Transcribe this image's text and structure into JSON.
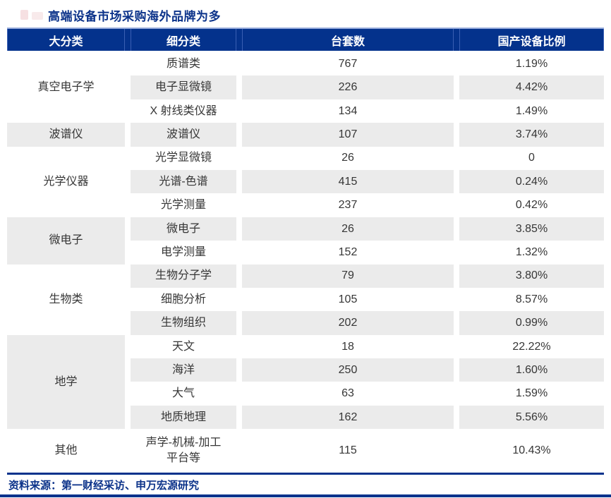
{
  "header": {
    "title": "高端设备市场采购海外品牌为多"
  },
  "footer": {
    "source": "资料来源：第一财经采访、申万宏源研究"
  },
  "colors": {
    "navy": "#04328c",
    "header_separator": "#3a5fb3",
    "row_alt_gray": "#ebebeb",
    "title_navy": "#0c338a",
    "body_text": "#363636"
  },
  "table": {
    "headers": [
      "大分类",
      "细分类",
      "台套数",
      "国产设备比例"
    ],
    "groups": [
      {
        "category": "真空电子学",
        "shaded": false,
        "rows": [
          {
            "subcategory": "质谱类",
            "count": "767",
            "ratio": "1.19%"
          },
          {
            "subcategory": "电子显微镜",
            "count": "226",
            "ratio": "4.42%"
          },
          {
            "subcategory": "X 射线类仪器",
            "count": "134",
            "ratio": "1.49%"
          }
        ]
      },
      {
        "category": "波谱仪",
        "shaded": true,
        "rows": [
          {
            "subcategory": "波谱仪",
            "count": "107",
            "ratio": "3.74%"
          }
        ]
      },
      {
        "category": "光学仪器",
        "shaded": false,
        "rows": [
          {
            "subcategory": "光学显微镜",
            "count": "26",
            "ratio": "0"
          },
          {
            "subcategory": "光谱-色谱",
            "count": "415",
            "ratio": "0.24%"
          },
          {
            "subcategory": "光学测量",
            "count": "237",
            "ratio": "0.42%"
          }
        ]
      },
      {
        "category": "微电子",
        "shaded": true,
        "rows": [
          {
            "subcategory": "微电子",
            "count": "26",
            "ratio": "3.85%"
          },
          {
            "subcategory": "电学测量",
            "count": "152",
            "ratio": "1.32%"
          }
        ]
      },
      {
        "category": "生物类",
        "shaded": false,
        "rows": [
          {
            "subcategory": "生物分子学",
            "count": "79",
            "ratio": "3.80%"
          },
          {
            "subcategory": "细胞分析",
            "count": "105",
            "ratio": "8.57%"
          },
          {
            "subcategory": "生物组织",
            "count": "202",
            "ratio": "0.99%"
          }
        ]
      },
      {
        "category": "地学",
        "shaded": true,
        "rows": [
          {
            "subcategory": "天文",
            "count": "18",
            "ratio": "22.22%"
          },
          {
            "subcategory": "海洋",
            "count": "250",
            "ratio": "1.60%"
          },
          {
            "subcategory": "大气",
            "count": "63",
            "ratio": "1.59%"
          },
          {
            "subcategory": "地质地理",
            "count": "162",
            "ratio": "5.56%"
          }
        ]
      },
      {
        "category": "其他",
        "shaded": false,
        "tall": true,
        "rows": [
          {
            "subcategory": "声学-机械-加工平台等",
            "count": "115",
            "ratio": "10.43%"
          }
        ]
      }
    ]
  },
  "chart_data": {
    "type": "table",
    "title": "高端设备市场采购海外品牌为多",
    "columns": [
      "大分类",
      "细分类",
      "台套数",
      "国产设备比例"
    ],
    "rows": [
      [
        "真空电子学",
        "质谱类",
        767,
        "1.19%"
      ],
      [
        "真空电子学",
        "电子显微镜",
        226,
        "4.42%"
      ],
      [
        "真空电子学",
        "X 射线类仪器",
        134,
        "1.49%"
      ],
      [
        "波谱仪",
        "波谱仪",
        107,
        "3.74%"
      ],
      [
        "光学仪器",
        "光学显微镜",
        26,
        "0"
      ],
      [
        "光学仪器",
        "光谱-色谱",
        415,
        "0.24%"
      ],
      [
        "光学仪器",
        "光学测量",
        237,
        "0.42%"
      ],
      [
        "微电子",
        "微电子",
        26,
        "3.85%"
      ],
      [
        "微电子",
        "电学测量",
        152,
        "1.32%"
      ],
      [
        "生物类",
        "生物分子学",
        79,
        "3.80%"
      ],
      [
        "生物类",
        "细胞分析",
        105,
        "8.57%"
      ],
      [
        "生物类",
        "生物组织",
        202,
        "0.99%"
      ],
      [
        "地学",
        "天文",
        18,
        "22.22%"
      ],
      [
        "地学",
        "海洋",
        250,
        "1.60%"
      ],
      [
        "地学",
        "大气",
        63,
        "1.59%"
      ],
      [
        "地学",
        "地质地理",
        162,
        "5.56%"
      ],
      [
        "其他",
        "声学-机械-加工平台等",
        115,
        "10.43%"
      ]
    ],
    "source": "资料来源：第一财经采访、申万宏源研究"
  }
}
